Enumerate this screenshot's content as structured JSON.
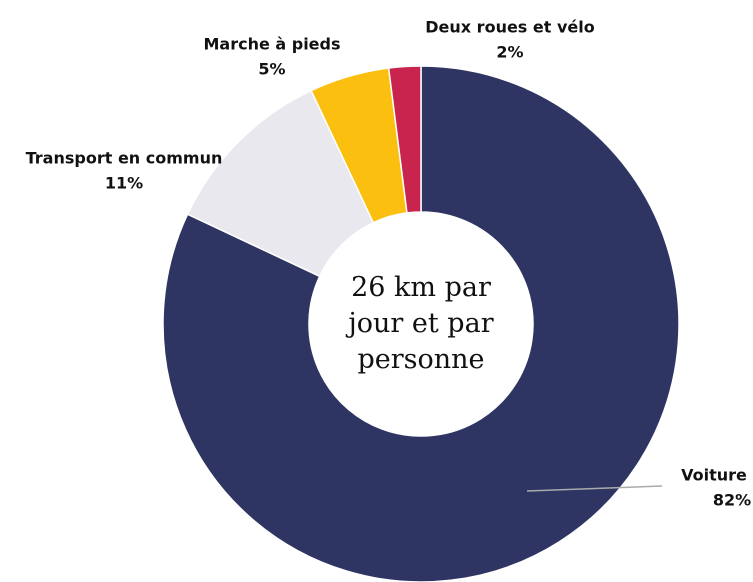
{
  "chart_data": {
    "type": "pie",
    "donut": true,
    "categories": [
      "Voiture",
      "Transport en commun",
      "Marche à pieds",
      "Deux roues et vélo"
    ],
    "values": [
      82,
      11,
      5,
      2
    ],
    "value_labels": [
      "82%",
      "11%",
      "5%",
      "2%"
    ],
    "colors": [
      "#2e3563",
      "#e8e8ee",
      "#fbbf0f",
      "#c8244d"
    ],
    "center_text": "26 km par jour et par personne"
  }
}
